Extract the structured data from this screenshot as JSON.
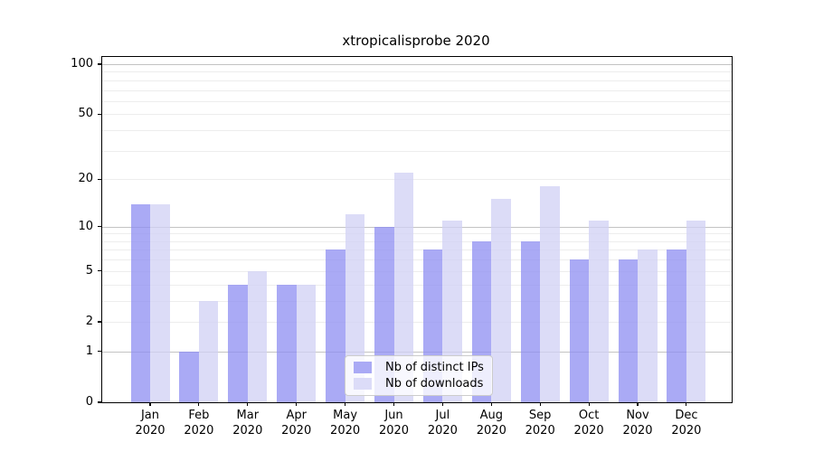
{
  "title": "xtropicalisprobe 2020",
  "chart_data": {
    "type": "bar",
    "title": "xtropicalisprobe 2020",
    "categories": [
      "Jan",
      "Feb",
      "Mar",
      "Apr",
      "May",
      "Jun",
      "Jul",
      "Aug",
      "Sep",
      "Oct",
      "Nov",
      "Dec"
    ],
    "x_year": "2020",
    "series": [
      {
        "name": "Nb of distinct IPs",
        "color": "#aaaaf5",
        "fill_rgba": "rgba(142,142,242,0.75)",
        "values": [
          14,
          1,
          4,
          4,
          7,
          10,
          7,
          8,
          8,
          6,
          6,
          7
        ]
      },
      {
        "name": "Nb of downloads",
        "color": "#dcdcf8",
        "fill_rgba": "rgba(208,208,244,0.75)",
        "values": [
          14,
          3,
          5,
          4,
          12,
          22,
          11,
          15,
          18,
          11,
          7,
          11
        ]
      }
    ],
    "y_scale": "log10(1+v)",
    "ylim": [
      0,
      100
    ],
    "y_tick_values": [
      100,
      50,
      20,
      10,
      5,
      2,
      1,
      0
    ],
    "y_tick_labels": [
      "100",
      "50",
      "20",
      "10",
      "5",
      "2",
      "1",
      "0"
    ],
    "major_grid_values": [
      1,
      10,
      100
    ],
    "minor_grid_values": [
      2,
      3,
      4,
      5,
      6,
      7,
      8,
      9,
      20,
      30,
      40,
      50,
      60,
      70,
      80,
      90
    ],
    "grid": true,
    "legend_position": "lower-center"
  },
  "colors": {
    "background": "#ffffff",
    "axis": "#000000",
    "grid_major": "#c3c3c3",
    "grid_minor": "#ededed",
    "legend_border": "#cccccc",
    "legend_bg": "rgba(255,255,255,0.8)"
  }
}
